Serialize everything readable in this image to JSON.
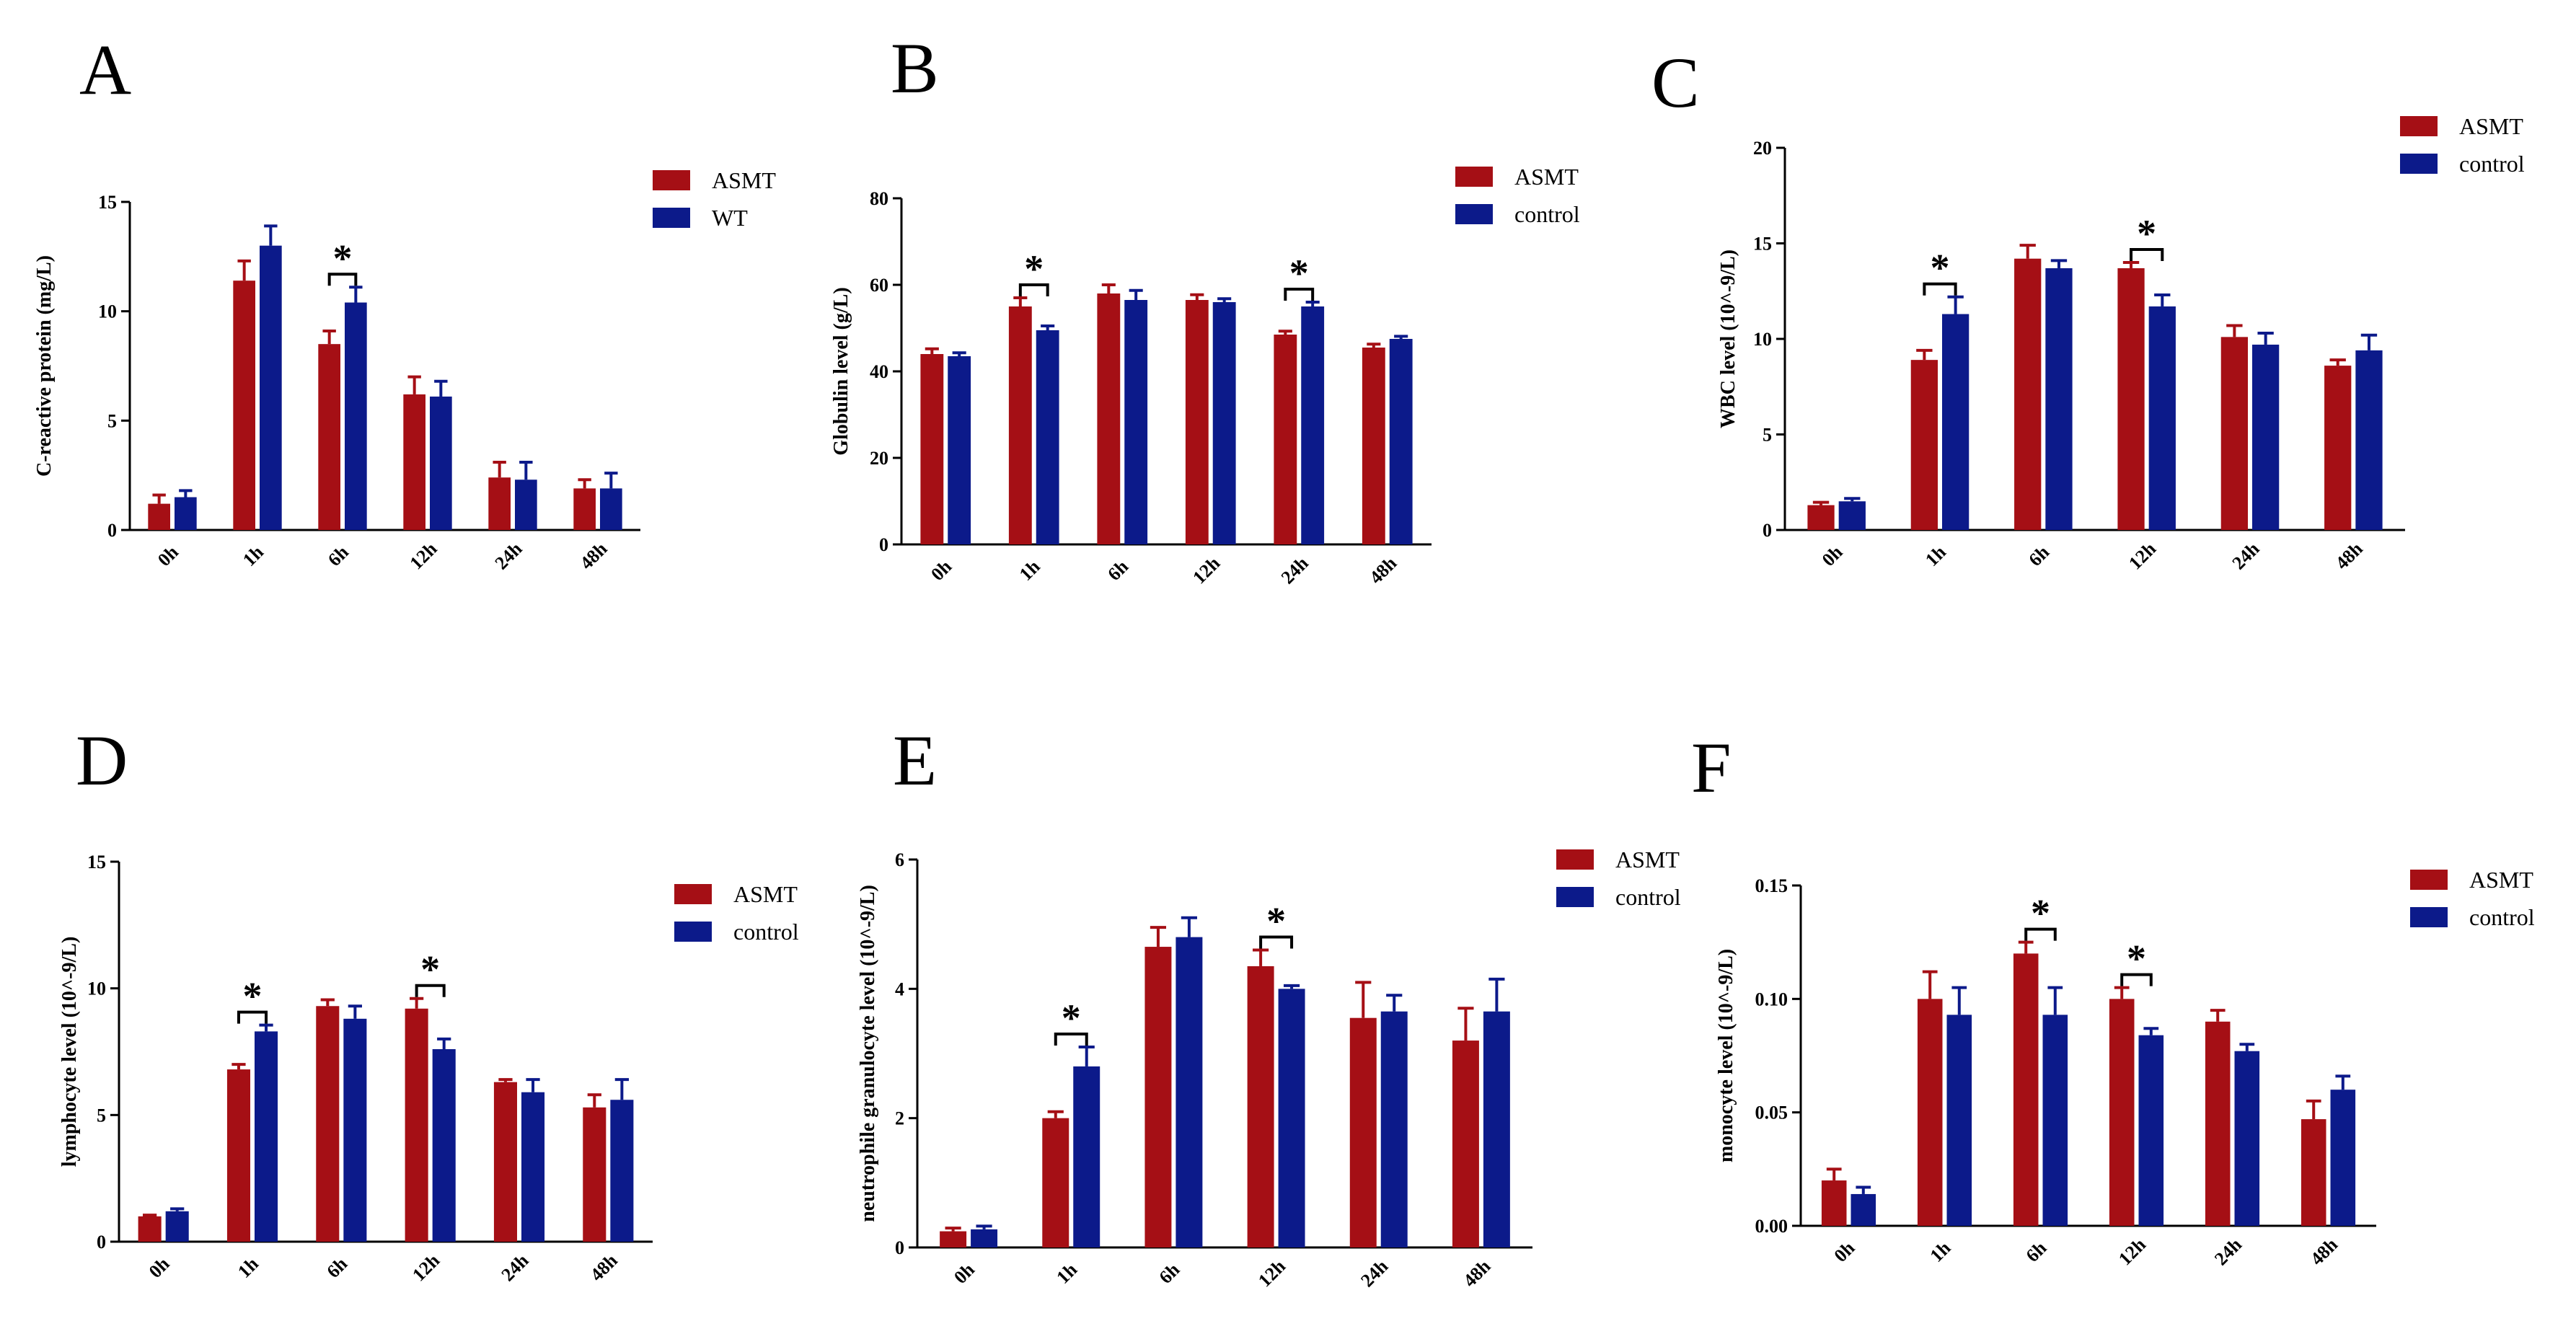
{
  "figure": {
    "colors": {
      "asmt": "#a50f15",
      "control": "#0c1a8a",
      "axis": "#000000"
    }
  },
  "chart_data": [
    {
      "panel": "A",
      "type": "bar",
      "title": "",
      "ylabel": "C-reactive protein (mg/L)",
      "xlabel": "",
      "categories": [
        "0h",
        "1h",
        "6h",
        "12h",
        "24h",
        "48h"
      ],
      "ylim": [
        0,
        15
      ],
      "yticks": [
        0,
        5,
        10,
        15
      ],
      "ytick_labels": [
        "0",
        "5",
        "10",
        "15"
      ],
      "grid": false,
      "legend_position": "top-right",
      "series": [
        {
          "name": "ASMT",
          "color": "#a50f15",
          "values": [
            1.2,
            11.4,
            8.5,
            6.2,
            2.4,
            1.9
          ],
          "errors": [
            0.4,
            0.9,
            0.6,
            0.8,
            0.7,
            0.4
          ]
        },
        {
          "name": "WT",
          "color": "#0c1a8a",
          "values": [
            1.5,
            13.0,
            10.4,
            6.1,
            2.3,
            1.9
          ],
          "errors": [
            0.3,
            0.9,
            0.7,
            0.7,
            0.8,
            0.7
          ]
        }
      ],
      "significance": [
        {
          "category": "6h",
          "label": "*"
        }
      ]
    },
    {
      "panel": "B",
      "type": "bar",
      "title": "",
      "ylabel": "Globulin level (g/L)",
      "xlabel": "",
      "categories": [
        "0h",
        "1h",
        "6h",
        "12h",
        "24h",
        "48h"
      ],
      "ylim": [
        0,
        80
      ],
      "yticks": [
        0,
        20,
        40,
        60,
        80
      ],
      "ytick_labels": [
        "0",
        "20",
        "40",
        "60",
        "80"
      ],
      "grid": false,
      "legend_position": "top-right",
      "series": [
        {
          "name": "ASMT",
          "color": "#a50f15",
          "values": [
            44,
            55,
            58,
            56.5,
            48.5,
            45.5
          ],
          "errors": [
            1.2,
            2,
            2,
            1.2,
            0.8,
            0.8
          ]
        },
        {
          "name": "control",
          "color": "#0c1a8a",
          "values": [
            43.5,
            49.5,
            56.5,
            56,
            55,
            47.5
          ],
          "errors": [
            0.8,
            1,
            2.2,
            0.8,
            1,
            0.6
          ]
        }
      ],
      "significance": [
        {
          "category": "1h",
          "label": "*"
        },
        {
          "category": "24h",
          "label": "*"
        }
      ]
    },
    {
      "panel": "C",
      "type": "bar",
      "title": "",
      "ylabel": "WBC level (10^-9/L)",
      "xlabel": "",
      "categories": [
        "0h",
        "1h",
        "6h",
        "12h",
        "24h",
        "48h"
      ],
      "ylim": [
        0,
        20
      ],
      "yticks": [
        0,
        5,
        10,
        15,
        20
      ],
      "ytick_labels": [
        "0",
        "5",
        "10",
        "15",
        "20"
      ],
      "grid": false,
      "legend_position": "top-right",
      "series": [
        {
          "name": "ASMT",
          "color": "#a50f15",
          "values": [
            1.3,
            8.9,
            14.2,
            13.7,
            10.1,
            8.6
          ],
          "errors": [
            0.15,
            0.5,
            0.7,
            0.3,
            0.6,
            0.3
          ]
        },
        {
          "name": "control",
          "color": "#0c1a8a",
          "values": [
            1.5,
            11.3,
            13.7,
            11.7,
            9.7,
            9.4
          ],
          "errors": [
            0.15,
            0.9,
            0.4,
            0.6,
            0.6,
            0.8
          ]
        }
      ],
      "significance": [
        {
          "category": "1h",
          "label": "*"
        },
        {
          "category": "12h",
          "label": "*"
        }
      ]
    },
    {
      "panel": "D",
      "type": "bar",
      "title": "",
      "ylabel": "lymphocyte level (10^-9/L)",
      "xlabel": "",
      "categories": [
        "0h",
        "1h",
        "6h",
        "12h",
        "24h",
        "48h"
      ],
      "ylim": [
        0,
        15
      ],
      "yticks": [
        0,
        5,
        10,
        15
      ],
      "ytick_labels": [
        "0",
        "5",
        "10",
        "15"
      ],
      "grid": false,
      "legend_position": "top-right",
      "series": [
        {
          "name": "ASMT",
          "color": "#a50f15",
          "values": [
            1.0,
            6.8,
            9.3,
            9.2,
            6.3,
            5.3
          ],
          "errors": [
            0.05,
            0.2,
            0.25,
            0.4,
            0.1,
            0.5
          ]
        },
        {
          "name": "control",
          "color": "#0c1a8a",
          "values": [
            1.2,
            8.3,
            8.8,
            7.6,
            5.9,
            5.6
          ],
          "errors": [
            0.1,
            0.25,
            0.5,
            0.4,
            0.5,
            0.8
          ]
        }
      ],
      "significance": [
        {
          "category": "1h",
          "label": "*"
        },
        {
          "category": "12h",
          "label": "*"
        }
      ]
    },
    {
      "panel": "E",
      "type": "bar",
      "title": "",
      "ylabel": "neutrophile granulocyte level (10^-9/L)",
      "xlabel": "",
      "categories": [
        "0h",
        "1h",
        "6h",
        "12h",
        "24h",
        "48h"
      ],
      "ylim": [
        0,
        6
      ],
      "yticks": [
        0,
        2,
        4,
        6
      ],
      "ytick_labels": [
        "0",
        "2",
        "4",
        "6"
      ],
      "grid": false,
      "legend_position": "top-right",
      "series": [
        {
          "name": "ASMT",
          "color": "#a50f15",
          "values": [
            0.25,
            2.0,
            4.65,
            4.35,
            3.55,
            3.2
          ],
          "errors": [
            0.05,
            0.1,
            0.3,
            0.25,
            0.55,
            0.5
          ]
        },
        {
          "name": "control",
          "color": "#0c1a8a",
          "values": [
            0.28,
            2.8,
            4.8,
            4.0,
            3.65,
            3.65
          ],
          "errors": [
            0.05,
            0.3,
            0.3,
            0.05,
            0.25,
            0.5
          ]
        }
      ],
      "significance": [
        {
          "category": "1h",
          "label": "*"
        },
        {
          "category": "12h",
          "label": "*"
        }
      ]
    },
    {
      "panel": "F",
      "type": "bar",
      "title": "",
      "ylabel": "monocyte level (10^-9/L)",
      "xlabel": "",
      "categories": [
        "0h",
        "1h",
        "6h",
        "12h",
        "24h",
        "48h"
      ],
      "ylim": [
        0,
        0.15
      ],
      "yticks": [
        0,
        0.05,
        0.1,
        0.15
      ],
      "ytick_labels": [
        "0.00",
        "0.05",
        "0.10",
        "0.15"
      ],
      "grid": false,
      "legend_position": "top-right",
      "series": [
        {
          "name": "ASMT",
          "color": "#a50f15",
          "values": [
            0.02,
            0.1,
            0.12,
            0.1,
            0.09,
            0.047
          ],
          "errors": [
            0.005,
            0.012,
            0.005,
            0.005,
            0.005,
            0.008
          ]
        },
        {
          "name": "control",
          "color": "#0c1a8a",
          "values": [
            0.014,
            0.093,
            0.093,
            0.084,
            0.077,
            0.06
          ],
          "errors": [
            0.003,
            0.012,
            0.012,
            0.003,
            0.003,
            0.006
          ]
        }
      ],
      "significance": [
        {
          "category": "6h",
          "label": "*"
        },
        {
          "category": "12h",
          "label": "*"
        }
      ]
    }
  ]
}
